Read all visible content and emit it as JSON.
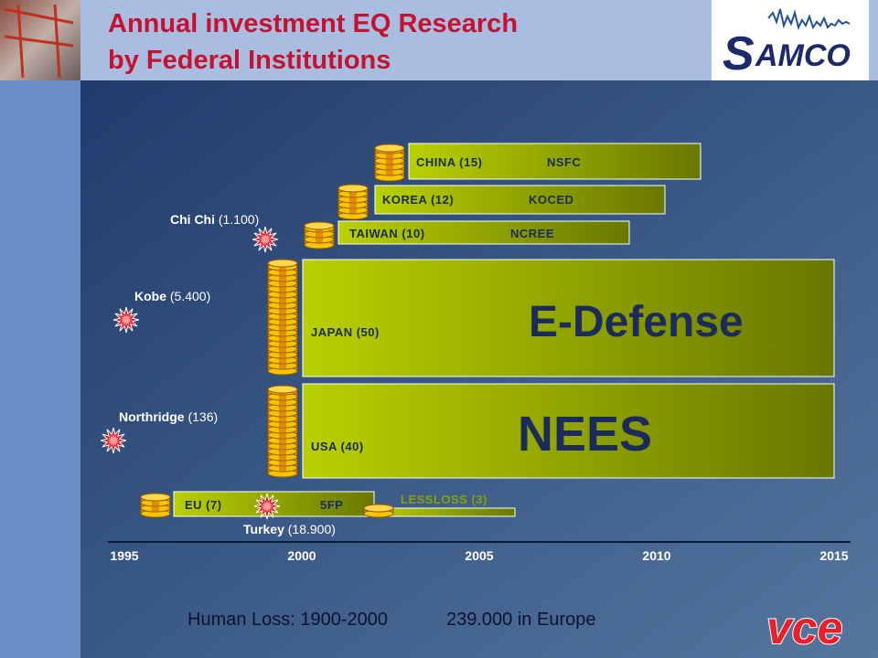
{
  "header": {
    "title_line1": "Annual investment EQ Research",
    "title_line2": "by Federal Institutions",
    "logo_initial": "S",
    "logo_rest": "AMCO"
  },
  "programs": [
    {
      "label": "CHINA (15)",
      "agency": "NSFC"
    },
    {
      "label": "KOREA (12)",
      "agency": "KOCED"
    },
    {
      "label": "TAIWAN (10)",
      "agency": "NCREE"
    },
    {
      "label": "JAPAN (50)",
      "agency": "E-Defense"
    },
    {
      "label": "USA (40)",
      "agency": "NEES"
    },
    {
      "label": "EU (7)",
      "agency": "5FP"
    },
    {
      "label": "LESSLOSS (3)"
    }
  ],
  "earthquakes": [
    {
      "name": "Chi Chi",
      "loss": "(1.100)"
    },
    {
      "name": "Kobe",
      "loss": "(5.400)"
    },
    {
      "name": "Northridge",
      "loss": "(136)"
    },
    {
      "name": "Turkey",
      "loss": "(18.900)"
    }
  ],
  "timeline": [
    "1995",
    "2000",
    "2005",
    "2010",
    "2015"
  ],
  "footer": {
    "human_loss": "Human Loss: 1900-2000",
    "europe": "239.000 in Europe",
    "logo": "vce"
  }
}
